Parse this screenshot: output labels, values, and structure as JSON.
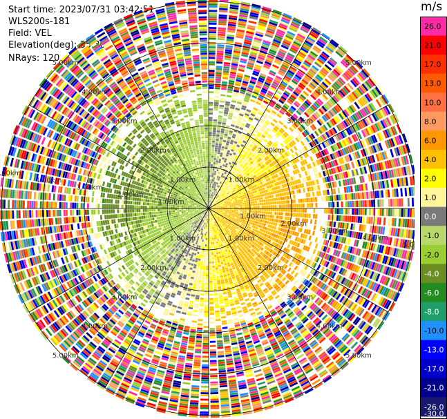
{
  "header": {
    "start_time": "Start time: 2023/07/31 03:42:51",
    "instrument": "WLS200s-181",
    "field": "Field: VEL",
    "elevation": "Elevation(deg): 35.30",
    "nrays": "NRays: 120"
  },
  "colorbar": {
    "unit": "m/s",
    "levels": [
      {
        "label": "26.0",
        "color": "#ff2aa6"
      },
      {
        "label": "21.0",
        "color": "#ff0000"
      },
      {
        "label": "17.0",
        "color": "#ff3000"
      },
      {
        "label": "13.0",
        "color": "#ff5a00"
      },
      {
        "label": "10.0",
        "color": "#ff7043"
      },
      {
        "label": "8.0",
        "color": "#ff9a60"
      },
      {
        "label": "6.0",
        "color": "#ff9800"
      },
      {
        "label": "4.0",
        "color": "#ffc000"
      },
      {
        "label": "2.0",
        "color": "#ffff00"
      },
      {
        "label": "1.0",
        "color": "#fff59a"
      },
      {
        "label": "0.0",
        "color": "#7a7a7a"
      },
      {
        "label": "-1.0",
        "color": "#b8d86b"
      },
      {
        "label": "-2.0",
        "color": "#9acd32"
      },
      {
        "label": "-4.0",
        "color": "#6b8e23"
      },
      {
        "label": "-6.0",
        "color": "#228b22"
      },
      {
        "label": "-8.0",
        "color": "#1f9e6a"
      },
      {
        "label": "-10.0",
        "color": "#1e90ff"
      },
      {
        "label": "-13.0",
        "color": "#0000ff"
      },
      {
        "label": "-17.0",
        "color": "#0000cd"
      },
      {
        "label": "-21.0",
        "color": "#00008b"
      },
      {
        "label": "-26.0",
        "color": "#191970"
      },
      {
        "label": "-30.0",
        "color": "#191970"
      }
    ]
  },
  "chart_data": {
    "type": "heatmap",
    "projection": "polar-ppi",
    "field": "VEL",
    "units": "m/s",
    "nrays": 120,
    "range_rings_km": [
      1.0,
      2.0,
      3.0,
      4.0,
      5.0
    ],
    "range_ring_labels": [
      "1.00km",
      "2.00km",
      "3.00km",
      "4.00km",
      "5.00km"
    ],
    "max_range_km": 5.0,
    "vmin": -30.0,
    "vmax": 26.0,
    "pattern": {
      "east_sector_mean_ms": 4.0,
      "west_sector_mean_ms": -5.0,
      "zero_line_azimuths_deg": [
        20,
        200
      ],
      "clean_data_range_km": 3.0,
      "noisy_beyond_km": 3.3
    }
  }
}
